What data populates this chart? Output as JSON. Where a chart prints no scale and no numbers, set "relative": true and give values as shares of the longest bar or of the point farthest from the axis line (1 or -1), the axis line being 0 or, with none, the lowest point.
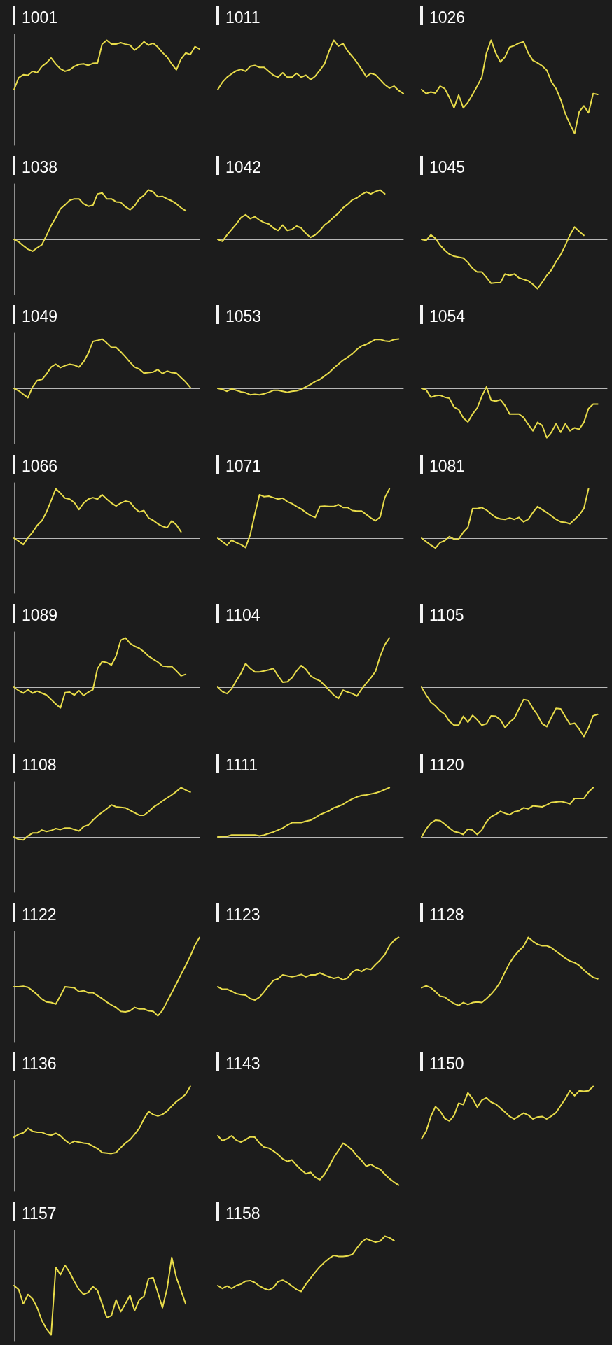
{
  "chart_data": [
    {
      "type": "line",
      "title": "1001",
      "relative": true,
      "color": "#e8dc4a",
      "categories": [
        null,
        null,
        null,
        null,
        null,
        null,
        null,
        null,
        null,
        null,
        null,
        null,
        null,
        null,
        null,
        null,
        null,
        null,
        null,
        null,
        null,
        null,
        null,
        null,
        null,
        null,
        null,
        null,
        null,
        null,
        null,
        null,
        null,
        null,
        null,
        null,
        null,
        null,
        null,
        null,
        null
      ],
      "values": [
        0,
        0.24,
        0.3,
        0.29,
        0.37,
        0.34,
        0.47,
        0.54,
        0.64,
        0.52,
        0.42,
        0.37,
        0.4,
        0.47,
        0.51,
        0.52,
        0.49,
        0.53,
        0.54,
        0.92,
        1,
        0.92,
        0.92,
        0.95,
        0.92,
        0.9,
        0.8,
        0.87,
        0.97,
        0.9,
        0.94,
        0.86,
        0.75,
        0.66,
        0.52,
        0.4,
        0.62,
        0.74,
        0.71,
        0.87,
        0.82
      ]
    },
    {
      "type": "line",
      "title": "1011",
      "relative": true,
      "color": "#e8dc4a",
      "categories": [
        null,
        null,
        null,
        null,
        null,
        null,
        null,
        null,
        null,
        null,
        null,
        null,
        null,
        null,
        null,
        null,
        null,
        null,
        null,
        null,
        null,
        null,
        null,
        null,
        null,
        null,
        null,
        null,
        null,
        null,
        null,
        null,
        null,
        null,
        null,
        null,
        null,
        null,
        null,
        null,
        null
      ],
      "values": [
        0,
        0.15,
        0.25,
        0.32,
        0.38,
        0.41,
        0.37,
        0.47,
        0.49,
        0.45,
        0.45,
        0.37,
        0.29,
        0.25,
        0.34,
        0.25,
        0.25,
        0.33,
        0.25,
        0.29,
        0.2,
        0.27,
        0.39,
        0.52,
        0.78,
        1,
        0.88,
        0.93,
        0.78,
        0.67,
        0.55,
        0.41,
        0.26,
        0.33,
        0.3,
        0.2,
        0.1,
        0.03,
        0.07,
        -0.02,
        -0.08
      ]
    },
    {
      "type": "line",
      "title": "1026",
      "relative": true,
      "color": "#e8dc4a",
      "categories": [
        null,
        null,
        null,
        null,
        null,
        null,
        null,
        null,
        null,
        null,
        null,
        null,
        null,
        null,
        null,
        null,
        null,
        null,
        null,
        null,
        null,
        null,
        null,
        null,
        null,
        null,
        null,
        null,
        null,
        null,
        null,
        null,
        null,
        null,
        null,
        null,
        null,
        null,
        null,
        null,
        null
      ],
      "values": [
        0,
        -0.08,
        -0.05,
        -0.07,
        0.07,
        0.02,
        -0.16,
        -0.37,
        -0.11,
        -0.37,
        -0.26,
        -0.1,
        0.07,
        0.25,
        0.74,
        1,
        0.74,
        0.56,
        0.66,
        0.86,
        0.89,
        0.94,
        0.97,
        0.74,
        0.59,
        0.54,
        0.48,
        0.39,
        0.16,
        0.02,
        -0.2,
        -0.49,
        -0.7,
        -0.89,
        -0.45,
        -0.33,
        -0.47,
        -0.08,
        -0.1,
        null,
        null
      ]
    },
    {
      "type": "line",
      "title": "1038",
      "relative": true,
      "color": "#e8dc4a",
      "categories": [
        null,
        null,
        null,
        null,
        null,
        null,
        null,
        null,
        null,
        null,
        null,
        null,
        null,
        null,
        null,
        null,
        null,
        null,
        null,
        null,
        null,
        null,
        null,
        null,
        null,
        null,
        null,
        null,
        null,
        null,
        null,
        null,
        null,
        null,
        null,
        null,
        null,
        null,
        null,
        null,
        null
      ],
      "values": [
        0,
        -0.05,
        -0.13,
        -0.2,
        -0.24,
        -0.17,
        -0.11,
        0.08,
        0.28,
        0.44,
        0.62,
        0.7,
        0.79,
        0.82,
        0.82,
        0.72,
        0.67,
        0.69,
        0.92,
        0.94,
        0.82,
        0.82,
        0.76,
        0.75,
        0.66,
        0.6,
        0.68,
        0.82,
        0.89,
        1,
        0.96,
        0.86,
        0.87,
        0.82,
        0.78,
        0.72,
        0.64,
        0.58,
        null,
        null,
        null
      ]
    },
    {
      "type": "line",
      "title": "1042",
      "relative": true,
      "color": "#e8dc4a",
      "categories": [
        null,
        null,
        null,
        null,
        null,
        null,
        null,
        null,
        null,
        null,
        null,
        null,
        null,
        null,
        null,
        null,
        null,
        null,
        null,
        null,
        null,
        null,
        null,
        null,
        null,
        null,
        null,
        null,
        null,
        null,
        null,
        null,
        null,
        null,
        null,
        null,
        null,
        null,
        null,
        null,
        null
      ],
      "values": [
        0,
        -0.04,
        0.09,
        0.2,
        0.31,
        0.44,
        0.5,
        0.42,
        0.46,
        0.39,
        0.34,
        0.31,
        0.23,
        0.18,
        0.29,
        0.18,
        0.2,
        0.27,
        0.23,
        0.12,
        0.04,
        0.09,
        0.18,
        0.29,
        0.36,
        0.45,
        0.53,
        0.64,
        0.71,
        0.8,
        0.84,
        0.91,
        0.96,
        0.92,
        0.97,
        1,
        0.92,
        null,
        null,
        null,
        null
      ]
    },
    {
      "type": "line",
      "title": "1045",
      "relative": true,
      "color": "#e8dc4a",
      "categories": [
        null,
        null,
        null,
        null,
        null,
        null,
        null,
        null,
        null,
        null,
        null,
        null,
        null,
        null,
        null,
        null,
        null,
        null,
        null,
        null,
        null,
        null,
        null,
        null,
        null,
        null,
        null,
        null,
        null,
        null,
        null,
        null,
        null,
        null,
        null,
        null,
        null,
        null,
        null,
        null,
        null
      ],
      "values": [
        0,
        -0.02,
        0.09,
        0.02,
        -0.12,
        -0.22,
        -0.3,
        -0.34,
        -0.36,
        -0.38,
        -0.47,
        -0.59,
        -0.66,
        -0.66,
        -0.77,
        -0.89,
        -0.88,
        -0.88,
        -0.7,
        -0.73,
        -0.7,
        -0.78,
        -0.81,
        -0.84,
        -0.91,
        -1,
        -0.87,
        -0.73,
        -0.62,
        -0.45,
        -0.31,
        -0.12,
        0.09,
        0.25,
        0.16,
        0.08,
        null,
        null,
        null,
        null,
        null
      ]
    },
    {
      "type": "line",
      "title": "1049",
      "relative": true,
      "color": "#e8dc4a",
      "categories": [
        null,
        null,
        null,
        null,
        null,
        null,
        null,
        null,
        null,
        null,
        null,
        null,
        null,
        null,
        null,
        null,
        null,
        null,
        null,
        null,
        null,
        null,
        null,
        null,
        null,
        null,
        null,
        null,
        null,
        null,
        null,
        null,
        null,
        null,
        null,
        null,
        null,
        null,
        null,
        null,
        null
      ],
      "values": [
        0,
        -0.05,
        -0.12,
        -0.19,
        0.03,
        0.16,
        0.18,
        0.29,
        0.43,
        0.49,
        0.42,
        0.46,
        0.49,
        0.47,
        0.43,
        0.54,
        0.71,
        0.95,
        0.97,
        1,
        0.92,
        0.83,
        0.83,
        0.74,
        0.64,
        0.53,
        0.43,
        0.39,
        0.31,
        0.32,
        0.33,
        0.38,
        0.3,
        0.35,
        0.32,
        0.31,
        0.22,
        0.13,
        0.02,
        null,
        null
      ]
    },
    {
      "type": "line",
      "title": "1053",
      "relative": true,
      "color": "#e8dc4a",
      "categories": [
        null,
        null,
        null,
        null,
        null,
        null,
        null,
        null,
        null,
        null,
        null,
        null,
        null,
        null,
        null,
        null,
        null,
        null,
        null,
        null,
        null,
        null,
        null,
        null,
        null,
        null,
        null,
        null,
        null,
        null,
        null,
        null,
        null,
        null,
        null,
        null,
        null,
        null,
        null,
        null,
        null
      ],
      "values": [
        0,
        -0.02,
        -0.06,
        -0.01,
        -0.04,
        -0.07,
        -0.09,
        -0.13,
        -0.12,
        -0.13,
        -0.11,
        -0.08,
        -0.04,
        -0.04,
        -0.06,
        -0.08,
        -0.06,
        -0.05,
        -0.02,
        0.03,
        0.08,
        0.14,
        0.18,
        0.25,
        0.32,
        0.41,
        0.49,
        0.57,
        0.63,
        0.7,
        0.79,
        0.86,
        0.89,
        0.94,
        0.99,
        0.99,
        0.96,
        0.95,
        0.99,
        1,
        null
      ]
    },
    {
      "type": "line",
      "title": "1054",
      "relative": true,
      "color": "#e8dc4a",
      "categories": [
        null,
        null,
        null,
        null,
        null,
        null,
        null,
        null,
        null,
        null,
        null,
        null,
        null,
        null,
        null,
        null,
        null,
        null,
        null,
        null,
        null,
        null,
        null,
        null,
        null,
        null,
        null,
        null,
        null,
        null,
        null,
        null,
        null,
        null,
        null,
        null,
        null,
        null,
        null,
        null,
        null
      ],
      "values": [
        0,
        -0.03,
        -0.18,
        -0.15,
        -0.14,
        -0.18,
        -0.2,
        -0.38,
        -0.43,
        -0.6,
        -0.68,
        -0.52,
        -0.4,
        -0.16,
        0.03,
        -0.24,
        -0.26,
        -0.23,
        -0.35,
        -0.52,
        -0.52,
        -0.52,
        -0.59,
        -0.73,
        -0.86,
        -0.69,
        -0.75,
        -1,
        -0.89,
        -0.72,
        -0.89,
        -0.72,
        -0.86,
        -0.8,
        -0.83,
        -0.69,
        -0.41,
        -0.32,
        -0.32,
        null,
        null
      ]
    },
    {
      "type": "line",
      "title": "1066",
      "relative": true,
      "color": "#e8dc4a",
      "categories": [
        null,
        null,
        null,
        null,
        null,
        null,
        null,
        null,
        null,
        null,
        null,
        null,
        null,
        null,
        null,
        null,
        null,
        null,
        null,
        null,
        null,
        null,
        null,
        null,
        null,
        null,
        null,
        null,
        null,
        null,
        null,
        null,
        null,
        null,
        null,
        null,
        null,
        null,
        null,
        null,
        null
      ],
      "values": [
        0,
        -0.06,
        -0.13,
        0.01,
        0.12,
        0.26,
        0.35,
        0.53,
        0.76,
        1,
        0.91,
        0.81,
        0.79,
        0.72,
        0.58,
        0.71,
        0.79,
        0.82,
        0.79,
        0.88,
        0.79,
        0.71,
        0.65,
        0.71,
        0.75,
        0.73,
        0.61,
        0.53,
        0.56,
        0.41,
        0.36,
        0.29,
        0.24,
        0.21,
        0.35,
        0.27,
        0.13,
        null,
        null,
        null,
        null
      ]
    },
    {
      "type": "line",
      "title": "1071",
      "relative": true,
      "color": "#e8dc4a",
      "categories": [
        null,
        null,
        null,
        null,
        null,
        null,
        null,
        null,
        null,
        null,
        null,
        null,
        null,
        null,
        null,
        null,
        null,
        null,
        null,
        null,
        null,
        null,
        null,
        null,
        null,
        null,
        null,
        null,
        null,
        null,
        null,
        null,
        null,
        null,
        null,
        null,
        null,
        null,
        null,
        null,
        null
      ],
      "values": [
        0,
        -0.07,
        -0.14,
        -0.04,
        -0.09,
        -0.13,
        -0.19,
        0.07,
        0.49,
        0.88,
        0.84,
        0.85,
        0.82,
        0.79,
        0.81,
        0.74,
        0.7,
        0.64,
        0.59,
        0.52,
        0.46,
        0.42,
        0.64,
        0.65,
        0.64,
        0.64,
        0.68,
        0.62,
        0.62,
        0.56,
        0.55,
        0.55,
        0.48,
        0.41,
        0.35,
        0.43,
        0.82,
        1,
        null,
        null,
        null
      ]
    },
    {
      "type": "line",
      "title": "1081",
      "relative": true,
      "color": "#e8dc4a",
      "categories": [
        null,
        null,
        null,
        null,
        null,
        null,
        null,
        null,
        null,
        null,
        null,
        null,
        null,
        null,
        null,
        null,
        null,
        null,
        null,
        null,
        null,
        null,
        null,
        null,
        null,
        null,
        null,
        null,
        null,
        null,
        null,
        null,
        null,
        null,
        null,
        null,
        null,
        null,
        null,
        null,
        null
      ],
      "values": [
        0,
        -0.07,
        -0.14,
        -0.2,
        -0.09,
        -0.05,
        0.03,
        -0.02,
        -0.02,
        0.12,
        0.22,
        0.6,
        0.6,
        0.62,
        0.57,
        0.49,
        0.42,
        0.39,
        0.38,
        0.41,
        0.38,
        0.42,
        0.33,
        0.38,
        0.52,
        0.64,
        0.58,
        0.52,
        0.45,
        0.38,
        0.33,
        0.32,
        0.29,
        0.38,
        0.47,
        0.6,
        1,
        null,
        null,
        null,
        null
      ]
    },
    {
      "type": "line",
      "title": "1089",
      "relative": true,
      "color": "#e8dc4a",
      "categories": [
        null,
        null,
        null,
        null,
        null,
        null,
        null,
        null,
        null,
        null,
        null,
        null,
        null,
        null,
        null,
        null,
        null,
        null,
        null,
        null,
        null,
        null,
        null,
        null,
        null,
        null,
        null,
        null,
        null,
        null,
        null,
        null,
        null,
        null,
        null,
        null,
        null,
        null,
        null,
        null,
        null
      ],
      "values": [
        0,
        -0.07,
        -0.12,
        -0.05,
        -0.12,
        -0.08,
        -0.12,
        -0.16,
        -0.25,
        -0.34,
        -0.42,
        -0.11,
        -0.1,
        -0.16,
        -0.07,
        -0.17,
        -0.1,
        -0.05,
        0.38,
        0.52,
        0.5,
        0.45,
        0.63,
        0.95,
        1,
        0.89,
        0.83,
        0.79,
        0.72,
        0.63,
        0.57,
        0.51,
        0.43,
        0.42,
        0.42,
        0.33,
        0.23,
        0.26,
        null,
        null,
        null
      ]
    },
    {
      "type": "line",
      "title": "1104",
      "relative": true,
      "color": "#e8dc4a",
      "categories": [
        null,
        null,
        null,
        null,
        null,
        null,
        null,
        null,
        null,
        null,
        null,
        null,
        null,
        null,
        null,
        null,
        null,
        null,
        null,
        null,
        null,
        null,
        null,
        null,
        null,
        null,
        null,
        null,
        null,
        null,
        null,
        null,
        null,
        null,
        null,
        null,
        null,
        null,
        null,
        null,
        null
      ],
      "values": [
        0,
        -0.09,
        -0.13,
        -0.03,
        0.13,
        0.28,
        0.48,
        0.38,
        0.31,
        0.31,
        0.33,
        0.35,
        0.38,
        0.23,
        0.1,
        0.11,
        0.19,
        0.33,
        0.44,
        0.36,
        0.23,
        0.17,
        0.13,
        0.04,
        -0.06,
        -0.16,
        -0.23,
        -0.06,
        -0.1,
        -0.13,
        -0.18,
        -0.04,
        0.08,
        0.19,
        0.32,
        0.63,
        0.86,
        1,
        null,
        null,
        null
      ]
    },
    {
      "type": "line",
      "title": "1105",
      "relative": true,
      "color": "#e8dc4a",
      "categories": [
        null,
        null,
        null,
        null,
        null,
        null,
        null,
        null,
        null,
        null,
        null,
        null,
        null,
        null,
        null,
        null,
        null,
        null,
        null,
        null,
        null,
        null,
        null,
        null,
        null,
        null,
        null,
        null,
        null,
        null,
        null,
        null,
        null,
        null,
        null,
        null,
        null,
        null,
        null,
        null,
        null
      ],
      "values": [
        0,
        -0.16,
        -0.3,
        -0.38,
        -0.48,
        -0.55,
        -0.69,
        -0.77,
        -0.77,
        -0.59,
        -0.71,
        -0.57,
        -0.66,
        -0.77,
        -0.74,
        -0.58,
        -0.59,
        -0.66,
        -0.82,
        -0.71,
        -0.63,
        -0.44,
        -0.25,
        -0.27,
        -0.43,
        -0.56,
        -0.74,
        -0.8,
        -0.61,
        -0.43,
        -0.44,
        -0.6,
        -0.75,
        -0.73,
        -0.85,
        -1,
        -0.82,
        -0.58,
        -0.55,
        null,
        null
      ]
    },
    {
      "type": "line",
      "title": "1108",
      "relative": true,
      "color": "#e8dc4a",
      "categories": [
        null,
        null,
        null,
        null,
        null,
        null,
        null,
        null,
        null,
        null,
        null,
        null,
        null,
        null,
        null,
        null,
        null,
        null,
        null,
        null,
        null,
        null,
        null,
        null,
        null,
        null,
        null,
        null,
        null,
        null,
        null,
        null,
        null,
        null,
        null,
        null,
        null,
        null,
        null,
        null,
        null
      ],
      "values": [
        0,
        -0.05,
        -0.06,
        0.02,
        0.08,
        0.08,
        0.14,
        0.11,
        0.13,
        0.17,
        0.15,
        0.18,
        0.18,
        0.15,
        0.12,
        0.21,
        0.24,
        0.34,
        0.43,
        0.5,
        0.57,
        0.65,
        0.61,
        0.6,
        0.59,
        0.54,
        0.49,
        0.44,
        0.44,
        0.51,
        0.6,
        0.66,
        0.73,
        0.79,
        0.85,
        0.92,
        1,
        0.95,
        0.91,
        null,
        null
      ]
    },
    {
      "type": "line",
      "title": "1111",
      "relative": true,
      "color": "#e8dc4a",
      "categories": [
        null,
        null,
        null,
        null,
        null,
        null,
        null,
        null,
        null,
        null,
        null,
        null,
        null,
        null,
        null,
        null,
        null,
        null,
        null,
        null,
        null,
        null,
        null,
        null,
        null,
        null,
        null,
        null,
        null,
        null,
        null,
        null,
        null,
        null,
        null,
        null,
        null,
        null,
        null,
        null,
        null
      ],
      "values": [
        0,
        0.01,
        0.01,
        0.04,
        0.04,
        0.04,
        0.04,
        0.04,
        0.04,
        0.02,
        0.04,
        0.07,
        0.1,
        0.14,
        0.18,
        0.24,
        0.29,
        0.29,
        0.29,
        0.32,
        0.34,
        0.39,
        0.45,
        0.49,
        0.53,
        0.59,
        0.62,
        0.66,
        0.72,
        0.77,
        0.81,
        0.84,
        0.85,
        0.87,
        0.89,
        0.92,
        0.96,
        1,
        null,
        null,
        null
      ]
    },
    {
      "type": "line",
      "title": "1120",
      "relative": true,
      "color": "#e8dc4a",
      "categories": [
        null,
        null,
        null,
        null,
        null,
        null,
        null,
        null,
        null,
        null,
        null,
        null,
        null,
        null,
        null,
        null,
        null,
        null,
        null,
        null,
        null,
        null,
        null,
        null,
        null,
        null,
        null,
        null,
        null,
        null,
        null,
        null,
        null,
        null,
        null,
        null,
        null,
        null,
        null,
        null,
        null
      ],
      "values": [
        0,
        0.16,
        0.28,
        0.34,
        0.33,
        0.26,
        0.18,
        0.11,
        0.09,
        0.05,
        0.16,
        0.14,
        0.05,
        0.14,
        0.31,
        0.41,
        0.46,
        0.52,
        0.48,
        0.45,
        0.51,
        0.53,
        0.59,
        0.57,
        0.63,
        0.62,
        0.61,
        0.65,
        0.7,
        0.71,
        0.72,
        0.7,
        0.67,
        0.78,
        0.78,
        0.78,
        0.91,
        1,
        null,
        null,
        null
      ]
    },
    {
      "type": "line",
      "title": "1122",
      "relative": true,
      "color": "#e8dc4a",
      "categories": [
        null,
        null,
        null,
        null,
        null,
        null,
        null,
        null,
        null,
        null,
        null,
        null,
        null,
        null,
        null,
        null,
        null,
        null,
        null,
        null,
        null,
        null,
        null,
        null,
        null,
        null,
        null,
        null,
        null,
        null,
        null,
        null,
        null,
        null,
        null,
        null,
        null,
        null,
        null,
        null,
        null
      ],
      "values": [
        0,
        0,
        0.01,
        -0.01,
        -0.08,
        -0.16,
        -0.25,
        -0.31,
        -0.32,
        -0.35,
        -0.18,
        0,
        -0.01,
        -0.02,
        -0.1,
        -0.08,
        -0.12,
        -0.12,
        -0.18,
        -0.24,
        -0.31,
        -0.37,
        -0.42,
        -0.5,
        -0.51,
        -0.49,
        -0.42,
        -0.45,
        -0.45,
        -0.49,
        -0.5,
        -0.59,
        -0.48,
        -0.3,
        -0.12,
        0.06,
        0.25,
        0.43,
        0.62,
        0.84,
        1
      ]
    },
    {
      "type": "line",
      "title": "1123",
      "relative": true,
      "color": "#e8dc4a",
      "categories": [
        null,
        null,
        null,
        null,
        null,
        null,
        null,
        null,
        null,
        null,
        null,
        null,
        null,
        null,
        null,
        null,
        null,
        null,
        null,
        null,
        null,
        null,
        null,
        null,
        null,
        null,
        null,
        null,
        null,
        null,
        null,
        null,
        null,
        null,
        null,
        null,
        null,
        null,
        null,
        null,
        null
      ],
      "values": [
        0,
        -0.05,
        -0.05,
        -0.09,
        -0.14,
        -0.16,
        -0.17,
        -0.24,
        -0.27,
        -0.21,
        -0.1,
        0.02,
        0.13,
        0.16,
        0.24,
        0.22,
        0.2,
        0.22,
        0.25,
        0.2,
        0.24,
        0.24,
        0.28,
        0.24,
        0.2,
        0.17,
        0.19,
        0.14,
        0.18,
        0.3,
        0.35,
        0.31,
        0.37,
        0.35,
        0.45,
        0.54,
        0.65,
        0.83,
        0.94,
        1,
        null
      ]
    },
    {
      "type": "line",
      "title": "1128",
      "relative": true,
      "color": "#e8dc4a",
      "categories": [
        null,
        null,
        null,
        null,
        null,
        null,
        null,
        null,
        null,
        null,
        null,
        null,
        null,
        null,
        null,
        null,
        null,
        null,
        null,
        null,
        null,
        null,
        null,
        null,
        null,
        null,
        null,
        null,
        null,
        null,
        null,
        null,
        null,
        null,
        null,
        null,
        null,
        null,
        null,
        null,
        null
      ],
      "values": [
        -0.02,
        0.02,
        -0.02,
        -0.1,
        -0.19,
        -0.21,
        -0.28,
        -0.34,
        -0.38,
        -0.32,
        -0.36,
        -0.32,
        -0.31,
        -0.32,
        -0.24,
        -0.15,
        -0.04,
        0.1,
        0.3,
        0.48,
        0.62,
        0.73,
        0.82,
        1,
        0.92,
        0.86,
        0.83,
        0.83,
        0.79,
        0.72,
        0.65,
        0.58,
        0.52,
        0.49,
        0.43,
        0.34,
        0.26,
        0.19,
        0.16,
        null,
        null
      ]
    },
    {
      "type": "line",
      "title": "1136",
      "relative": true,
      "color": "#e8dc4a",
      "categories": [
        null,
        null,
        null,
        null,
        null,
        null,
        null,
        null,
        null,
        null,
        null,
        null,
        null,
        null,
        null,
        null,
        null,
        null,
        null,
        null,
        null,
        null,
        null,
        null,
        null,
        null,
        null,
        null,
        null,
        null,
        null,
        null,
        null,
        null,
        null,
        null,
        null,
        null,
        null,
        null,
        null
      ],
      "values": [
        -0.03,
        0.03,
        0.06,
        0.15,
        0.09,
        0.07,
        0.07,
        0.03,
        0.01,
        0.05,
        0,
        -0.09,
        -0.16,
        -0.11,
        -0.13,
        -0.15,
        -0.16,
        -0.21,
        -0.26,
        -0.34,
        -0.35,
        -0.36,
        -0.34,
        -0.24,
        -0.15,
        -0.08,
        0.03,
        0.15,
        0.34,
        0.49,
        0.43,
        0.4,
        0.43,
        0.5,
        0.6,
        0.69,
        0.76,
        0.84,
        1,
        null,
        null
      ]
    },
    {
      "type": "line",
      "title": "1143",
      "relative": true,
      "color": "#e8dc4a",
      "categories": [
        null,
        null,
        null,
        null,
        null,
        null,
        null,
        null,
        null,
        null,
        null,
        null,
        null,
        null,
        null,
        null,
        null,
        null,
        null,
        null,
        null,
        null,
        null,
        null,
        null,
        null,
        null,
        null,
        null,
        null,
        null,
        null,
        null,
        null,
        null,
        null,
        null,
        null,
        null,
        null,
        null
      ],
      "values": [
        0,
        -0.1,
        -0.06,
        0,
        -0.09,
        -0.13,
        -0.08,
        -0.02,
        -0.03,
        -0.15,
        -0.23,
        -0.25,
        -0.31,
        -0.38,
        -0.47,
        -0.52,
        -0.49,
        -0.6,
        -0.69,
        -0.77,
        -0.74,
        -0.84,
        -0.89,
        -0.78,
        -0.62,
        -0.44,
        -0.3,
        -0.15,
        -0.21,
        -0.29,
        -0.41,
        -0.5,
        -0.62,
        -0.58,
        -0.64,
        -0.68,
        -0.78,
        -0.87,
        -0.94,
        -1,
        null
      ]
    },
    {
      "type": "line",
      "title": "1150",
      "relative": true,
      "color": "#e8dc4a",
      "categories": [
        null,
        null,
        null,
        null,
        null,
        null,
        null,
        null,
        null,
        null,
        null,
        null,
        null,
        null,
        null,
        null,
        null,
        null,
        null,
        null,
        null,
        null,
        null,
        null,
        null,
        null,
        null,
        null,
        null,
        null,
        null,
        null,
        null,
        null,
        null,
        null,
        null,
        null,
        null,
        null,
        null
      ],
      "values": [
        -0.06,
        0.09,
        0.39,
        0.59,
        0.5,
        0.35,
        0.3,
        0.41,
        0.66,
        0.63,
        0.87,
        0.75,
        0.58,
        0.72,
        0.77,
        0.68,
        0.64,
        0.56,
        0.48,
        0.39,
        0.34,
        0.4,
        0.46,
        0.42,
        0.34,
        0.38,
        0.39,
        0.34,
        0.4,
        0.47,
        0.61,
        0.75,
        0.91,
        0.81,
        0.91,
        0.9,
        0.91,
        1,
        null,
        null,
        null
      ]
    },
    {
      "type": "line",
      "title": "1157",
      "relative": true,
      "color": "#e8dc4a",
      "categories": [
        null,
        null,
        null,
        null,
        null,
        null,
        null,
        null,
        null,
        null,
        null,
        null,
        null,
        null,
        null,
        null,
        null,
        null,
        null,
        null,
        null,
        null,
        null,
        null,
        null,
        null,
        null,
        null,
        null,
        null,
        null,
        null,
        null,
        null,
        null,
        null,
        null,
        null,
        null,
        null,
        null
      ],
      "values": [
        0,
        -0.08,
        -0.37,
        -0.18,
        -0.27,
        -0.45,
        -0.71,
        -0.88,
        -1,
        0.37,
        0.22,
        0.41,
        0.27,
        0.08,
        -0.08,
        -0.18,
        -0.14,
        -0.02,
        -0.1,
        -0.37,
        -0.65,
        -0.61,
        -0.29,
        -0.53,
        -0.37,
        -0.2,
        -0.51,
        -0.29,
        -0.22,
        0.14,
        0.16,
        -0.14,
        -0.45,
        -0.06,
        0.57,
        0.16,
        -0.1,
        -0.37,
        null,
        null,
        null
      ]
    },
    {
      "type": "line",
      "title": "1158",
      "relative": true,
      "color": "#e8dc4a",
      "categories": [
        null,
        null,
        null,
        null,
        null,
        null,
        null,
        null,
        null,
        null,
        null,
        null,
        null,
        null,
        null,
        null,
        null,
        null,
        null,
        null,
        null,
        null,
        null,
        null,
        null,
        null,
        null,
        null,
        null,
        null,
        null,
        null,
        null,
        null,
        null,
        null,
        null,
        null,
        null,
        null,
        null
      ],
      "values": [
        0,
        -0.06,
        -0.01,
        -0.06,
        0,
        0.03,
        0.09,
        0.1,
        0.06,
        -0.01,
        -0.06,
        -0.09,
        -0.04,
        0.08,
        0.11,
        0.06,
        -0.01,
        -0.08,
        -0.12,
        0.03,
        0.15,
        0.27,
        0.38,
        0.47,
        0.55,
        0.61,
        0.59,
        0.59,
        0.6,
        0.63,
        0.76,
        0.88,
        0.95,
        0.91,
        0.88,
        0.9,
        1,
        0.97,
        0.91,
        null,
        null
      ]
    }
  ]
}
